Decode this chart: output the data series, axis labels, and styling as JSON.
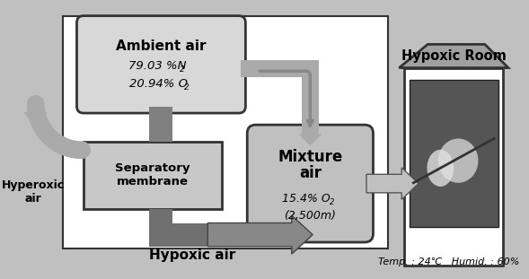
{
  "fig_bg": "#c0c0c0",
  "main_box_color": "#ffffff",
  "ambient_box_color": "#d8d8d8",
  "sep_box_color": "#c8c8c8",
  "mix_box_color": "#b8b8b8",
  "arrow_color": "#aaaaaa",
  "dark_col_color": "#808080",
  "hypoxic_arrow_color": "#707070",
  "house_roof_color": "#a0a0a0",
  "house_body_color": "#ffffff",
  "photo_color": "#666666",
  "ambient_air_label": "Ambient air",
  "ambient_sub1": "79.03 %N",
  "ambient_sub2": "20.94% O",
  "sep_label": "Separatory\nmembrane",
  "mix_label1": "Mixture",
  "mix_label2": "air",
  "mix_sub1": "15.4% O",
  "mix_sub2": "(2,500m)",
  "hypoxic_air_label": "Hypoxic air",
  "hyperoxic_label": "Hyperoxic\nair",
  "hypoxic_room_label": "Hypoxic Room",
  "temp_label": "Temp. : 24℃   Humid. : 60%"
}
